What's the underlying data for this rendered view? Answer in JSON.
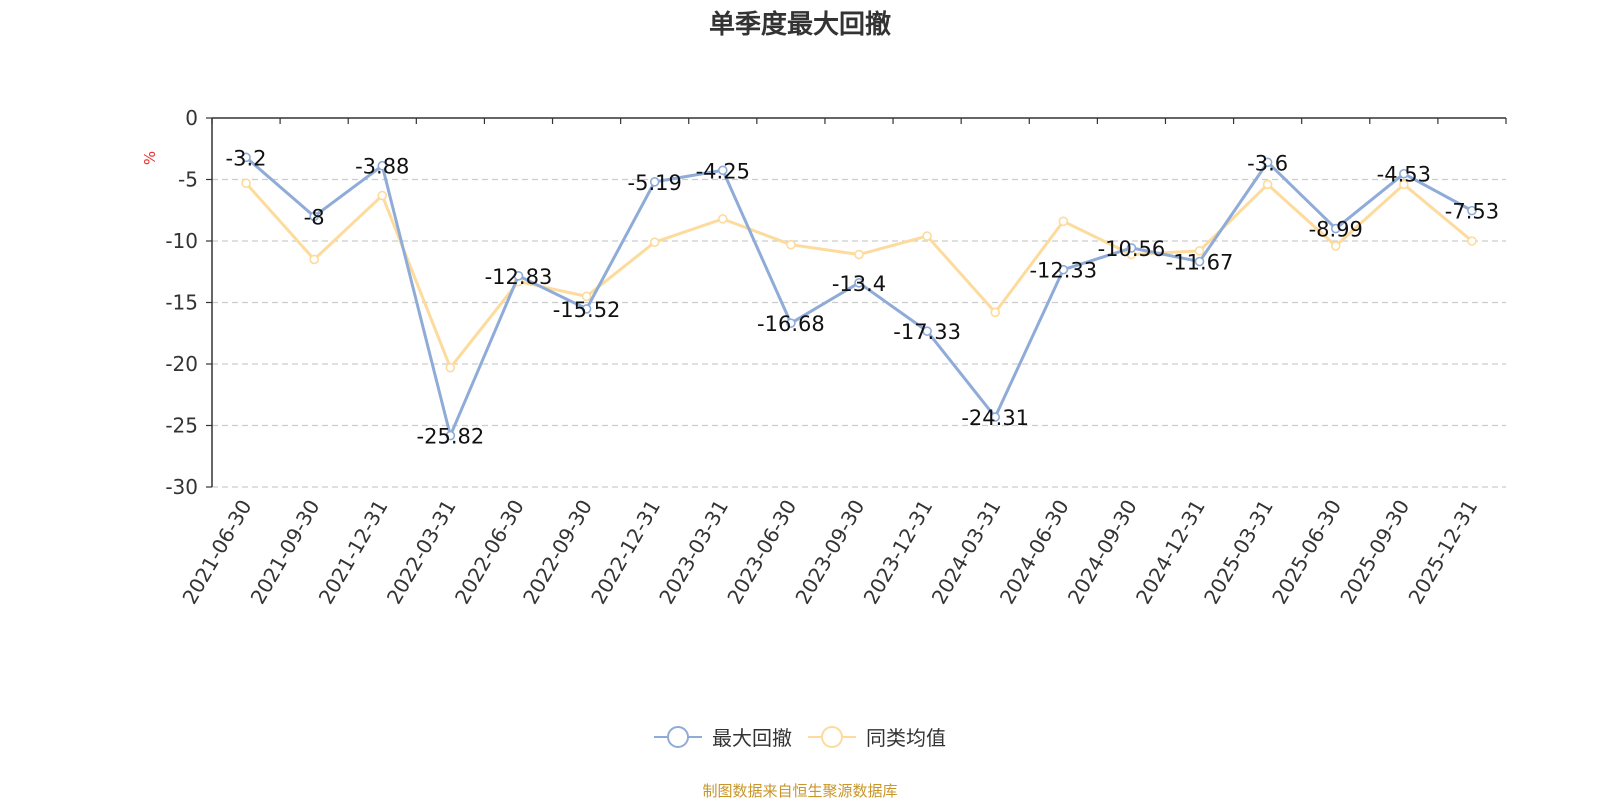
{
  "chart_data": {
    "type": "line",
    "title": "单季度最大回撤",
    "ylabel": "%",
    "xlabel": "",
    "ylim": [
      -30,
      0
    ],
    "yticks": [
      0,
      -5,
      -10,
      -15,
      -20,
      -25,
      -30
    ],
    "grid": true,
    "legend_position": "bottom-center",
    "x": [
      "2021-06-30",
      "2021-09-30",
      "2021-12-31",
      "2022-03-31",
      "2022-06-30",
      "2022-09-30",
      "2022-12-31",
      "2023-03-31",
      "2023-06-30",
      "2023-09-30",
      "2023-12-31",
      "2024-03-31",
      "2024-06-30",
      "2024-09-30",
      "2024-12-31",
      "2025-03-31",
      "2025-06-30",
      "2025-09-30",
      "2025-12-31"
    ],
    "series": [
      {
        "name": "最大回撤",
        "color": "#8fabd8",
        "show_labels": true,
        "values": [
          -3.2,
          -8,
          -3.88,
          -25.82,
          -12.83,
          -15.52,
          -5.19,
          -4.25,
          -16.68,
          -13.4,
          -17.33,
          -24.31,
          -12.33,
          -10.56,
          -11.67,
          -3.6,
          -8.99,
          -4.53,
          -7.53
        ]
      },
      {
        "name": "同类均值",
        "color": "#fddb9c",
        "show_labels": false,
        "values": [
          -5.3,
          -11.5,
          -6.3,
          -20.3,
          -13.3,
          -14.5,
          -10.1,
          -8.2,
          -10.3,
          -11.1,
          -9.6,
          -15.8,
          -8.4,
          -11.1,
          -10.8,
          -5.4,
          -10.4,
          -5.4,
          -10.0
        ]
      }
    ]
  },
  "source_note": "制图数据来自恒生聚源数据库"
}
